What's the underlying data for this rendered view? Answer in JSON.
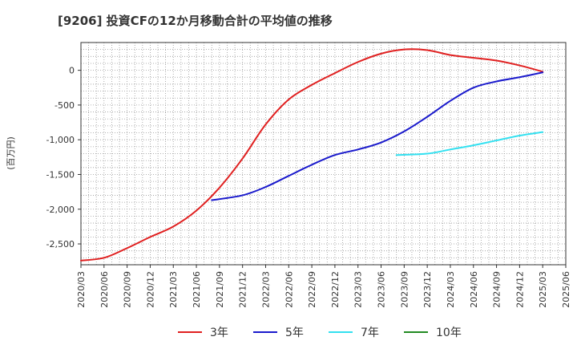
{
  "chart_data": {
    "type": "line",
    "title": "[9206]  投資CFの12か月移動合計の平均値の推移",
    "ylabel": "(百万円)",
    "xlabel": "",
    "ylim": [
      -2800,
      400
    ],
    "y_ticks": [
      0,
      -500,
      -1000,
      -1500,
      -2000,
      -2500
    ],
    "y_tick_labels": [
      "0",
      "-500",
      "-1,000",
      "-1,500",
      "-2,000",
      "-2,500"
    ],
    "x_ticks": [
      "2020/03",
      "2020/06",
      "2020/09",
      "2020/12",
      "2021/03",
      "2021/06",
      "2021/09",
      "2021/12",
      "2022/03",
      "2022/06",
      "2022/09",
      "2022/12",
      "2023/03",
      "2023/06",
      "2023/09",
      "2023/12",
      "2024/03",
      "2024/06",
      "2024/09",
      "2024/12",
      "2025/03",
      "2025/06"
    ],
    "legend_position": "bottom",
    "grid": true,
    "series": [
      {
        "name": "3年",
        "color": "#e02020",
        "points": [
          [
            "2020/03",
            -2740
          ],
          [
            "2020/06",
            -2700
          ],
          [
            "2020/09",
            -2560
          ],
          [
            "2020/12",
            -2400
          ],
          [
            "2021/03",
            -2250
          ],
          [
            "2021/06",
            -2020
          ],
          [
            "2021/09",
            -1690
          ],
          [
            "2021/12",
            -1270
          ],
          [
            "2022/03",
            -780
          ],
          [
            "2022/06",
            -420
          ],
          [
            "2022/09",
            -210
          ],
          [
            "2022/12",
            -40
          ],
          [
            "2023/03",
            120
          ],
          [
            "2023/06",
            240
          ],
          [
            "2023/09",
            300
          ],
          [
            "2023/12",
            290
          ],
          [
            "2024/03",
            220
          ],
          [
            "2024/06",
            180
          ],
          [
            "2024/09",
            140
          ],
          [
            "2024/12",
            70
          ],
          [
            "2025/03",
            -20
          ]
        ]
      },
      {
        "name": "5年",
        "color": "#1a1acc",
        "points": [
          [
            "2021/08",
            -1870
          ],
          [
            "2021/12",
            -1800
          ],
          [
            "2022/03",
            -1680
          ],
          [
            "2022/06",
            -1520
          ],
          [
            "2022/09",
            -1360
          ],
          [
            "2022/12",
            -1220
          ],
          [
            "2023/03",
            -1140
          ],
          [
            "2023/06",
            -1040
          ],
          [
            "2023/09",
            -880
          ],
          [
            "2023/12",
            -670
          ],
          [
            "2024/03",
            -440
          ],
          [
            "2024/06",
            -250
          ],
          [
            "2024/09",
            -160
          ],
          [
            "2024/12",
            -100
          ],
          [
            "2025/03",
            -30
          ]
        ]
      },
      {
        "name": "7年",
        "color": "#33e0f0",
        "points": [
          [
            "2023/08",
            -1220
          ],
          [
            "2023/12",
            -1200
          ],
          [
            "2024/03",
            -1140
          ],
          [
            "2024/06",
            -1080
          ],
          [
            "2024/09",
            -1010
          ],
          [
            "2024/12",
            -940
          ],
          [
            "2025/03",
            -890
          ]
        ]
      },
      {
        "name": "10年",
        "color": "#228b22",
        "points": []
      }
    ]
  }
}
